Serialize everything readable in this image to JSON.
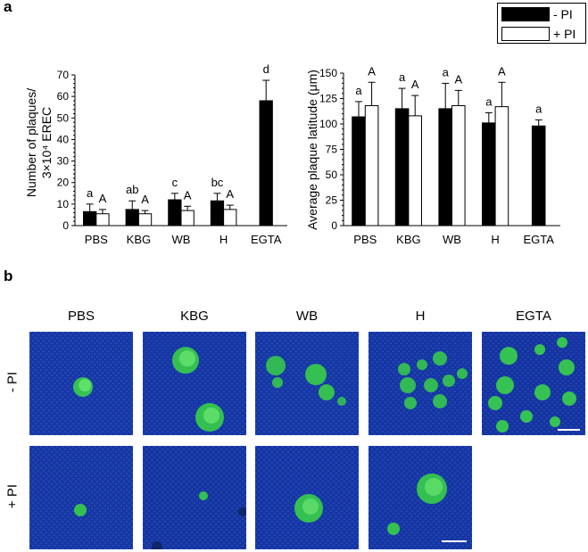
{
  "panel_a_label": "a",
  "panel_b_label": "b",
  "legend": {
    "minus_pi": "- PI",
    "plus_pi": "+ PI"
  },
  "colors": {
    "minus_pi": "#000000",
    "plus_pi": "#ffffff",
    "micro_bg": "#1a3fb0",
    "plaque": "#3ad24a"
  },
  "chart_data": [
    {
      "type": "bar",
      "ylabel_line1": "Number of plaques/",
      "ylabel_line2": "3×10⁴ EREC",
      "ylim": [
        0,
        70
      ],
      "yticks": [
        "0",
        "10",
        "20",
        "30",
        "40",
        "50",
        "60",
        "70"
      ],
      "categories": [
        "PBS",
        "KBG",
        "WB",
        "H",
        "EGTA"
      ],
      "series": [
        {
          "name": "- PI",
          "values": [
            6.5,
            7.5,
            12.0,
            11.5,
            58.0
          ],
          "errors": [
            3.5,
            4.0,
            3.0,
            3.5,
            9.5
          ],
          "letters": [
            "a",
            "ab",
            "c",
            "bc",
            "d"
          ]
        },
        {
          "name": "+ PI",
          "values": [
            5.5,
            5.5,
            7.0,
            7.5,
            null
          ],
          "errors": [
            2.0,
            1.5,
            2.0,
            2.0,
            null
          ],
          "letters": [
            "A",
            "A",
            "A",
            "A",
            ""
          ]
        }
      ]
    },
    {
      "type": "bar",
      "ylabel": "Average plaque latitude (μm)",
      "ylim": [
        0,
        150
      ],
      "yticks": [
        "0",
        "25",
        "50",
        "75",
        "100",
        "125",
        "150"
      ],
      "categories": [
        "PBS",
        "KBG",
        "WB",
        "H",
        "EGTA"
      ],
      "series": [
        {
          "name": "- PI",
          "values": [
            107,
            115,
            115,
            101,
            98
          ],
          "errors": [
            15,
            20,
            25,
            10,
            6
          ],
          "letters": [
            "a",
            "a",
            "a",
            "a",
            "a"
          ]
        },
        {
          "name": "+ PI",
          "values": [
            118,
            108,
            118,
            117,
            null
          ],
          "errors": [
            23,
            20,
            15,
            24,
            null
          ],
          "letters": [
            "A",
            "A",
            "A",
            "A",
            ""
          ]
        }
      ]
    }
  ],
  "panel_b": {
    "columns": [
      "PBS",
      "KBG",
      "WB",
      "H",
      "EGTA"
    ],
    "rows": [
      "- PI",
      "+ PI"
    ]
  }
}
